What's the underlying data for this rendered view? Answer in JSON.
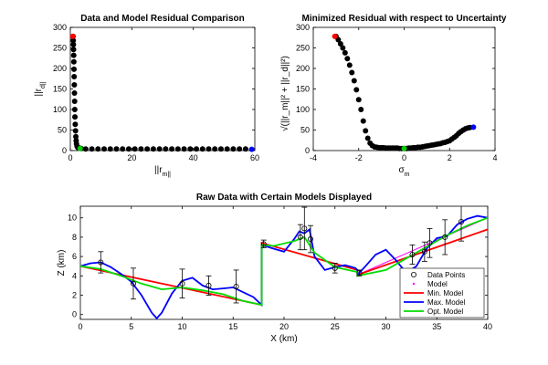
{
  "chart_data": [
    {
      "type": "scatter",
      "title": "Data and Model Residual Comparison",
      "xlabel": "||r_m||",
      "ylabel": "||r_d||",
      "xlim": [
        0,
        60
      ],
      "ylim": [
        0,
        300
      ],
      "xticks": [
        0,
        20,
        40,
        60
      ],
      "yticks": [
        0,
        50,
        100,
        150,
        200,
        250,
        300
      ],
      "grid": false,
      "series": [
        {
          "color": "#000000",
          "x": [
            0.9,
            0.95,
            1.0,
            1.05,
            1.1,
            1.15,
            1.2,
            1.25,
            1.3,
            1.35,
            1.4,
            1.45,
            1.5,
            1.6,
            1.7,
            1.8,
            1.9,
            2.0,
            2.2,
            2.5,
            3.0,
            3.5,
            5,
            7,
            9,
            11,
            13,
            15,
            17,
            19,
            21,
            23,
            25,
            27,
            29,
            31,
            33,
            35,
            37,
            39,
            41,
            43,
            45,
            47,
            49,
            51,
            53,
            55,
            57
          ],
          "y": [
            278,
            268,
            258,
            246,
            232,
            216,
            198,
            180,
            160,
            140,
            120,
            100,
            82,
            64,
            48,
            34,
            24,
            16,
            10,
            7,
            6,
            5,
            4,
            4,
            4,
            4,
            4,
            4,
            4,
            4,
            4,
            4,
            4,
            4,
            4,
            4,
            4,
            4,
            4,
            4,
            4,
            4,
            4,
            4,
            4,
            4,
            4,
            4,
            4
          ]
        }
      ],
      "highlights": [
        {
          "color": "#ff0000",
          "x": 0.8,
          "y": 278
        },
        {
          "color": "#00cc00",
          "x": 3.2,
          "y": 5
        },
        {
          "color": "#0000ff",
          "x": 59,
          "y": 3
        }
      ]
    },
    {
      "type": "scatter",
      "title": "Minimized Residual with respect to Uncertainty",
      "xlabel": "σ_m",
      "ylabel": "√(||r_m||² + ||r_d||²)",
      "xlim": [
        -4,
        4
      ],
      "ylim": [
        0,
        300
      ],
      "xticks": [
        -4,
        -2,
        0,
        2,
        4
      ],
      "yticks": [
        0,
        50,
        100,
        150,
        200,
        250,
        300
      ],
      "grid": false,
      "series": [
        {
          "color": "#000000",
          "x": [
            -3.0,
            -2.9,
            -2.8,
            -2.7,
            -2.6,
            -2.5,
            -2.4,
            -2.3,
            -2.2,
            -2.1,
            -2.0,
            -1.9,
            -1.8,
            -1.7,
            -1.6,
            -1.5,
            -1.4,
            -1.3,
            -1.2,
            -1.1,
            -1.0,
            -0.9,
            -0.8,
            -0.7,
            -0.6,
            -0.5,
            -0.4,
            -0.3,
            -0.2,
            -0.1,
            0.0,
            0.1,
            0.2,
            0.3,
            0.4,
            0.5,
            0.6,
            0.7,
            0.8,
            0.9,
            1.0,
            1.1,
            1.2,
            1.3,
            1.4,
            1.5,
            1.6,
            1.7,
            1.8,
            1.9,
            2.0,
            2.1,
            2.2,
            2.3,
            2.4,
            2.5,
            2.6,
            2.7,
            2.8,
            2.9
          ],
          "y": [
            278,
            270,
            260,
            250,
            238,
            224,
            208,
            190,
            170,
            148,
            124,
            100,
            72,
            48,
            30,
            18,
            12,
            9,
            8,
            7,
            7,
            7,
            6,
            6,
            6,
            6,
            6,
            6,
            5,
            5,
            5,
            5,
            6,
            6,
            7,
            7,
            8,
            8,
            9,
            10,
            11,
            12,
            13,
            14,
            15,
            16,
            17,
            19,
            20,
            22,
            24,
            28,
            32,
            36,
            42,
            46,
            50,
            53,
            55,
            56
          ]
        }
      ],
      "highlights": [
        {
          "color": "#ff0000",
          "x": -3.05,
          "y": 278
        },
        {
          "color": "#00cc00",
          "x": 0,
          "y": 5
        },
        {
          "color": "#0000ff",
          "x": 3.05,
          "y": 57
        }
      ]
    },
    {
      "type": "line",
      "title": "Raw Data with Certain Models Displayed",
      "xlabel": "X (km)",
      "ylabel": "Z (km)",
      "xlim": [
        0,
        40
      ],
      "ylim": [
        -0.5,
        11.2
      ],
      "xticks": [
        0,
        5,
        10,
        15,
        20,
        25,
        30,
        35,
        40
      ],
      "yticks": [
        0,
        2,
        4,
        6,
        8,
        10
      ],
      "grid": false,
      "legend": "bottom-right",
      "data_points": {
        "name": "Data Points",
        "x": [
          2,
          5.2,
          10,
          12.6,
          15.3,
          18,
          21.6,
          22,
          22.6,
          25,
          27.4,
          32.6,
          33.8,
          34.3,
          35.8,
          37.4
        ],
        "y": [
          5.4,
          3.2,
          3.2,
          3.0,
          2.9,
          7.3,
          8.0,
          8.9,
          7.8,
          4.8,
          4.3,
          6.2,
          6.5,
          7.4,
          8.0,
          9.6
        ],
        "err": [
          1.1,
          1.6,
          1.5,
          1.0,
          1.7,
          0.4,
          1.3,
          2.2,
          1.4,
          0.5,
          0.3,
          1.0,
          1.0,
          1.5,
          1.8,
          2.0
        ]
      },
      "series": [
        {
          "name": "Model",
          "color": "#ff00ff",
          "x": [
            0,
            17.8,
            17.8,
            27.2,
            27.2,
            40
          ],
          "y": [
            5,
            1,
            7.4,
            4.6,
            4.1,
            10
          ]
        },
        {
          "name": "Min. Model",
          "color": "#ff0000",
          "x": [
            0,
            17.8,
            17.8,
            27.2,
            27.2,
            40
          ],
          "y": [
            5,
            1,
            7.4,
            4.6,
            4.1,
            8.8
          ]
        },
        {
          "name": "Max. Model",
          "color": "#0000ff",
          "x": [
            0,
            1,
            2,
            3,
            4,
            5,
            6,
            7,
            7.5,
            8,
            9,
            10,
            11,
            12,
            13,
            14,
            15,
            16,
            17,
            17.8,
            17.8,
            19,
            20,
            21,
            21.5,
            22,
            22.5,
            23,
            24,
            25,
            26,
            27,
            27.2,
            27.2,
            28,
            29,
            30,
            31,
            32,
            33,
            34,
            35,
            36,
            37,
            38,
            39,
            40
          ],
          "y": [
            5,
            5.3,
            5.4,
            4.9,
            4.2,
            3.4,
            2.0,
            0.2,
            -0.4,
            0.2,
            2.2,
            3.5,
            3.8,
            3.0,
            2.6,
            2.7,
            2.8,
            2.3,
            1.8,
            1.0,
            7.2,
            6.8,
            6.5,
            7.8,
            8.6,
            8.4,
            8.8,
            6.0,
            4.6,
            4.9,
            5.1,
            4.8,
            4.6,
            4.1,
            5.0,
            6.2,
            6.7,
            5.6,
            4.3,
            5.0,
            6.8,
            7.9,
            8.1,
            9.3,
            9.9,
            10.2,
            10.0
          ]
        },
        {
          "name": "Opt. Model",
          "color": "#00dd00",
          "x": [
            0,
            2,
            4,
            6,
            8,
            10,
            12,
            14,
            16,
            17.8,
            17.8,
            19,
            21,
            22,
            23,
            25,
            27.2,
            27.2,
            30,
            32,
            34,
            36,
            38,
            40
          ],
          "y": [
            5,
            4.7,
            4.0,
            3.2,
            2.6,
            2.8,
            2.5,
            2.1,
            1.4,
            1.0,
            7.2,
            7.1,
            7.6,
            8.0,
            6.4,
            4.9,
            4.4,
            4.0,
            4.6,
            5.8,
            7.0,
            8.2,
            9.2,
            10.0
          ]
        }
      ]
    }
  ]
}
